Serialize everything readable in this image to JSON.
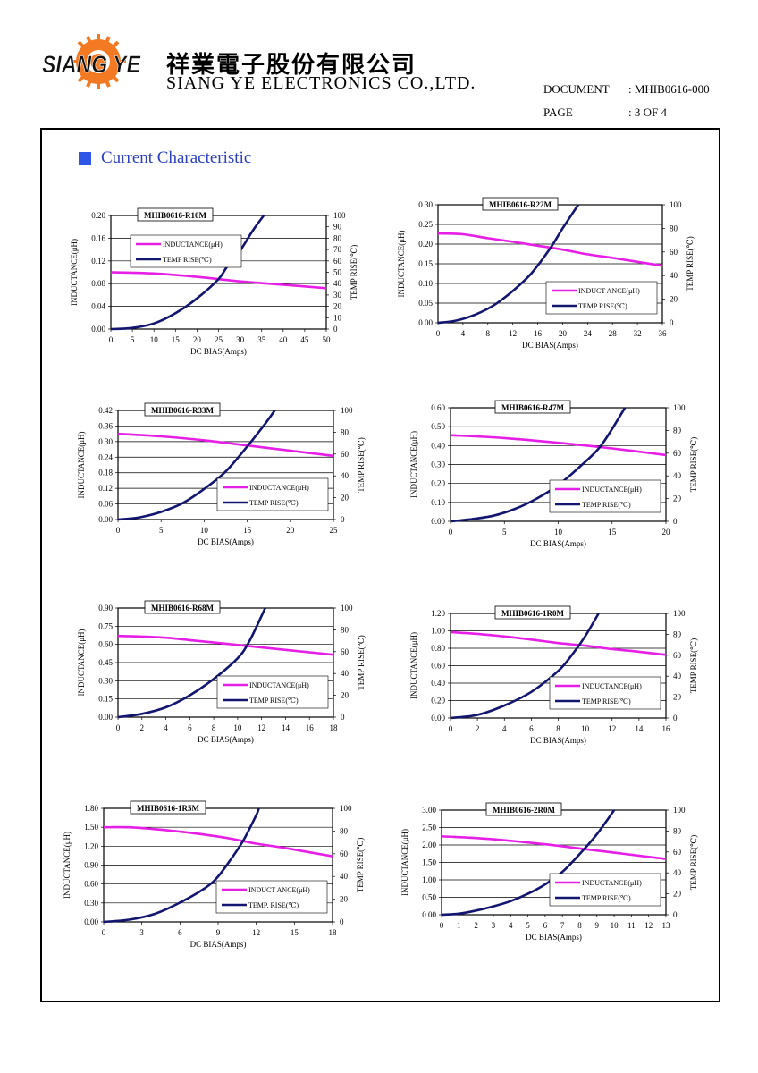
{
  "header": {
    "logo_text": "SIANG YE",
    "company_cn": "祥業電子股份有限公司",
    "company_en": "SIANG YE ELECTRONICS CO.,LTD.",
    "document_label": "DOCUMENT",
    "document_value": ": MHIB0616-000",
    "page_label": "PAGE",
    "page_value": ": 3 OF 4",
    "colors": {
      "accent": "#2f56e6",
      "inductance_line": "#e61ee6",
      "temp_line": "#121670"
    }
  },
  "section": {
    "title": "Current Characteristic"
  },
  "chart_data": [
    {
      "type": "line",
      "title": "MHIB0616-R10M",
      "xlabel": "DC BIAS(Amps)",
      "ylabel": "INDUCTANCE(μH)",
      "y2label": "TEMP RISE(℃)",
      "xlim": [
        0,
        50
      ],
      "ylim": [
        0,
        0.2
      ],
      "y2lim": [
        0,
        100
      ],
      "xticks": [
        0,
        5,
        10,
        15,
        20,
        25,
        30,
        35,
        40,
        45,
        50
      ],
      "yticks": [
        0,
        0.04,
        0.08,
        0.12,
        0.16,
        0.2
      ],
      "y2ticks": [
        0,
        10,
        20,
        30,
        40,
        50,
        60,
        70,
        80,
        90,
        100
      ],
      "ydigits": 2,
      "grid": true,
      "legend": "upper-left",
      "series": [
        {
          "name": "INDUCTANCE(μH)",
          "axis": "left",
          "x": [
            0,
            10,
            20,
            30,
            40,
            50
          ],
          "y": [
            0.1,
            0.098,
            0.092,
            0.084,
            0.078,
            0.072
          ]
        },
        {
          "name": "TEMP RISE(℃)",
          "axis": "right",
          "x": [
            0,
            5,
            10,
            15,
            20,
            25,
            27,
            30,
            33,
            35.5
          ],
          "y": [
            0,
            1,
            5,
            14,
            27,
            44,
            55,
            69,
            87,
            100
          ]
        }
      ]
    },
    {
      "type": "line",
      "title": "MHIB0616-R22M",
      "xlabel": "DC BIAS(Amps)",
      "ylabel": "INDUCTANCE(μH)",
      "y2label": "TEMP RISE(℃)",
      "xlim": [
        0,
        36
      ],
      "ylim": [
        0,
        0.3
      ],
      "y2lim": [
        0,
        100
      ],
      "xticks": [
        0,
        4,
        8,
        12,
        16,
        20,
        24,
        28,
        32,
        36
      ],
      "yticks": [
        0,
        0.05,
        0.1,
        0.15,
        0.2,
        0.25,
        0.3
      ],
      "y2ticks": [
        0,
        20,
        40,
        60,
        80,
        100
      ],
      "ydigits": 2,
      "grid": true,
      "legend": "lower-right",
      "series": [
        {
          "name": "INDUCT ANCE(μH)",
          "axis": "left",
          "x": [
            0,
            4,
            8,
            12,
            16,
            20,
            24,
            28,
            32,
            36
          ],
          "y": [
            0.227,
            0.225,
            0.215,
            0.206,
            0.196,
            0.186,
            0.174,
            0.165,
            0.155,
            0.145
          ]
        },
        {
          "name": "TEMP RISE(℃)",
          "axis": "right",
          "x": [
            0,
            3,
            6,
            9,
            12,
            15,
            18,
            20,
            22.5
          ],
          "y": [
            0,
            2,
            7,
            15,
            27,
            42,
            63,
            80,
            100
          ]
        }
      ]
    },
    {
      "type": "line",
      "title": "MHIB0616-R33M",
      "xlabel": "DC BIAS(Amps)",
      "ylabel": "INDUCTANCE(μH)",
      "y2label": "TEMP RISE(℃)",
      "xlim": [
        0,
        25
      ],
      "ylim": [
        0,
        0.42
      ],
      "y2lim": [
        0,
        100
      ],
      "xticks": [
        0,
        5,
        10,
        15,
        20,
        25
      ],
      "yticks": [
        0,
        0.06,
        0.12,
        0.18,
        0.24,
        0.3,
        0.36,
        0.42
      ],
      "y2ticks": [
        0,
        20,
        40,
        60,
        80,
        100
      ],
      "ydigits": 2,
      "grid": true,
      "legend": "lower-right",
      "series": [
        {
          "name": "INDUCTANCE(μH)",
          "axis": "left",
          "x": [
            0,
            5,
            10,
            15,
            20,
            25
          ],
          "y": [
            0.33,
            0.32,
            0.305,
            0.285,
            0.265,
            0.245
          ]
        },
        {
          "name": "TEMP RISE(℃)",
          "axis": "right",
          "x": [
            0,
            2.5,
            5,
            7.5,
            10,
            12.5,
            15,
            17,
            18.2
          ],
          "y": [
            0,
            2,
            7,
            15,
            28,
            44,
            67,
            87,
            100
          ]
        }
      ]
    },
    {
      "type": "line",
      "title": "MHIB0616-R47M",
      "xlabel": "DC BIAS(Amps)",
      "ylabel": "INDUCTANCE(μH)",
      "y2label": "TEMP RISE(℃)",
      "xlim": [
        0,
        20
      ],
      "ylim": [
        0,
        0.6
      ],
      "y2lim": [
        0,
        100
      ],
      "xticks": [
        0,
        5,
        10,
        15,
        20
      ],
      "yticks": [
        0,
        0.1,
        0.2,
        0.3,
        0.4,
        0.5,
        0.6
      ],
      "y2ticks": [
        0,
        20,
        40,
        60,
        80,
        100
      ],
      "ydigits": 2,
      "grid": true,
      "legend": "lower-right",
      "series": [
        {
          "name": "INDUCTANCE(μH)",
          "axis": "left",
          "x": [
            0,
            5,
            10,
            15,
            20
          ],
          "y": [
            0.455,
            0.44,
            0.415,
            0.385,
            0.35
          ]
        },
        {
          "name": "TEMP RISE(℃)",
          "axis": "right",
          "x": [
            0,
            2,
            4,
            6,
            8,
            10,
            12,
            14,
            16.2
          ],
          "y": [
            0,
            2,
            5,
            11,
            20,
            32,
            48,
            67,
            100
          ]
        }
      ]
    },
    {
      "type": "line",
      "title": "MHIB0616-R68M",
      "xlabel": "DC BIAS(Amps)",
      "ylabel": "INDUCTANCE(μH)",
      "y2label": "TEMP RISE(℃)",
      "xlim": [
        0,
        18
      ],
      "ylim": [
        0,
        0.9
      ],
      "y2lim": [
        0,
        100
      ],
      "xticks": [
        0,
        2,
        4,
        6,
        8,
        10,
        12,
        14,
        16,
        18
      ],
      "yticks": [
        0,
        0.15,
        0.3,
        0.45,
        0.6,
        0.75,
        0.9
      ],
      "y2ticks": [
        0,
        20,
        40,
        60,
        80,
        100
      ],
      "ydigits": 2,
      "grid": true,
      "legend": "lower-right",
      "series": [
        {
          "name": "INDUCTANCE(μH)",
          "axis": "left",
          "x": [
            0,
            2,
            4,
            6,
            8,
            10,
            12,
            14,
            16,
            18
          ],
          "y": [
            0.67,
            0.665,
            0.655,
            0.635,
            0.615,
            0.595,
            0.575,
            0.555,
            0.535,
            0.515
          ]
        },
        {
          "name": "TEMP RISE(℃)",
          "axis": "right",
          "x": [
            0,
            2,
            4,
            6,
            8,
            10,
            11,
            12.3
          ],
          "y": [
            0,
            3,
            9,
            20,
            35,
            54,
            70,
            100
          ]
        }
      ]
    },
    {
      "type": "line",
      "title": "MHIB0616-1R0M",
      "xlabel": "DC BIAS(Amps)",
      "ylabel": "INDUCTANCE(μH)",
      "y2label": "TEMP RISE(℃)",
      "xlim": [
        0,
        16
      ],
      "ylim": [
        0,
        1.2
      ],
      "y2lim": [
        0,
        100
      ],
      "xticks": [
        0,
        2,
        4,
        6,
        8,
        10,
        12,
        14,
        16
      ],
      "yticks": [
        0,
        0.2,
        0.4,
        0.6,
        0.8,
        1.0,
        1.2
      ],
      "y2ticks": [
        0,
        20,
        40,
        60,
        80,
        100
      ],
      "ydigits": 2,
      "grid": true,
      "legend": "lower-right",
      "series": [
        {
          "name": "INDUCTANCE(μH)",
          "axis": "left",
          "x": [
            0,
            2,
            4,
            6,
            8,
            10,
            12,
            14,
            16
          ],
          "y": [
            0.985,
            0.965,
            0.935,
            0.9,
            0.86,
            0.83,
            0.79,
            0.76,
            0.725
          ]
        },
        {
          "name": "TEMP RISE(℃)",
          "axis": "right",
          "x": [
            0,
            2,
            4,
            6,
            8,
            9,
            10,
            11
          ],
          "y": [
            0,
            3,
            12,
            25,
            45,
            60,
            78,
            100
          ]
        }
      ]
    },
    {
      "type": "line",
      "title": "MHIB0616-1R5M",
      "xlabel": "DC BIAS(Amps)",
      "ylabel": "INDUCTANCE(μH)",
      "y2label": "TEMP RISE(℃)",
      "xlim": [
        0,
        18
      ],
      "ylim": [
        0,
        1.8
      ],
      "y2lim": [
        0,
        100
      ],
      "xticks": [
        0,
        3,
        6,
        9,
        12,
        15,
        18
      ],
      "yticks": [
        0,
        0.3,
        0.6,
        0.9,
        1.2,
        1.5,
        1.8
      ],
      "y2ticks": [
        0,
        20,
        40,
        60,
        80,
        100
      ],
      "ydigits": 2,
      "grid": true,
      "legend": "lower-right",
      "series": [
        {
          "name": "INDUCT ANCE(μH)",
          "axis": "left",
          "x": [
            0,
            2,
            4,
            6,
            8,
            10,
            12,
            14,
            16,
            18
          ],
          "y": [
            1.5,
            1.5,
            1.47,
            1.43,
            1.38,
            1.32,
            1.24,
            1.18,
            1.11,
            1.04
          ]
        },
        {
          "name": "TEMP. RISE(℃)",
          "axis": "right",
          "x": [
            0,
            2,
            4,
            6,
            8,
            9,
            10,
            11,
            12,
            12.2
          ],
          "y": [
            0,
            2,
            7,
            17,
            30,
            40,
            55,
            72,
            94,
            100
          ]
        }
      ]
    },
    {
      "type": "line",
      "title": "MHIB0616-2R0M",
      "xlabel": "DC BIAS(Amps)",
      "ylabel": "INDUCTANCE(μH)",
      "y2label": "TEMP RISE(℃)",
      "xlim": [
        0,
        13
      ],
      "ylim": [
        0,
        3
      ],
      "y2lim": [
        0,
        100
      ],
      "xticks": [
        0,
        1,
        2,
        3,
        4,
        5,
        6,
        7,
        8,
        9,
        10,
        11,
        12,
        13
      ],
      "yticks": [
        0,
        0.5,
        1,
        1.5,
        2,
        2.5,
        3
      ],
      "y2ticks": [
        0,
        20,
        40,
        60,
        80,
        100
      ],
      "ydigits": 2,
      "grid": true,
      "legend": "lower-right",
      "series": [
        {
          "name": "INDUCTANCE(μH)",
          "axis": "left",
          "x": [
            0,
            2,
            4,
            6,
            8,
            10,
            12,
            13
          ],
          "y": [
            2.25,
            2.2,
            2.12,
            2.02,
            1.9,
            1.78,
            1.66,
            1.6
          ]
        },
        {
          "name": "TEMP RISE(℃)",
          "axis": "right",
          "x": [
            0,
            1,
            2,
            3,
            4,
            5,
            6,
            7,
            8,
            9,
            10
          ],
          "y": [
            0,
            1,
            4,
            8,
            13,
            20,
            29,
            41,
            58,
            77,
            100
          ]
        }
      ]
    }
  ]
}
